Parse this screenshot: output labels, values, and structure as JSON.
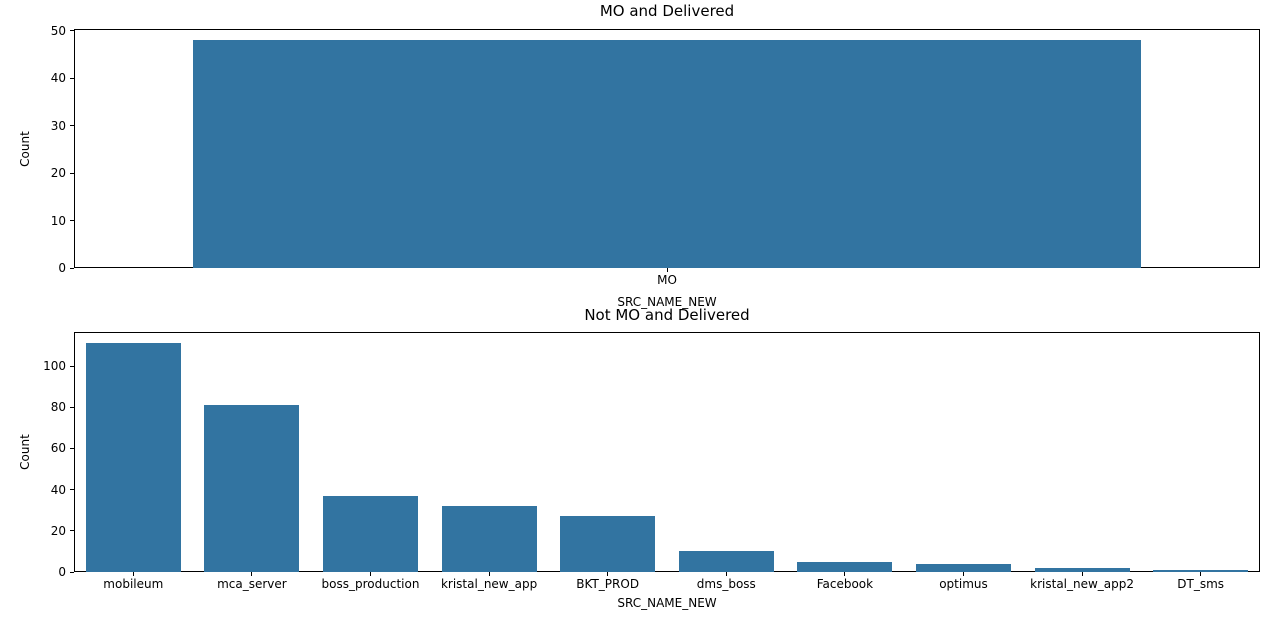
{
  "figure": {
    "background_color": "#ffffff",
    "bar_color": "#3274a1",
    "text_color": "#000000"
  },
  "chart_data": [
    {
      "type": "bar",
      "title": "MO and Delivered",
      "xlabel": "SRC_NAME_NEW",
      "ylabel": "Count",
      "categories": [
        "MO"
      ],
      "values": [
        48
      ],
      "yticks": [
        0,
        10,
        20,
        30,
        40,
        50
      ],
      "ylim": [
        0,
        50.4
      ],
      "grid": false,
      "legend": null
    },
    {
      "type": "bar",
      "title": "Not MO and Delivered",
      "xlabel": "SRC_NAME_NEW",
      "ylabel": "Count",
      "categories": [
        "mobileum",
        "mca_server",
        "boss_production",
        "kristal_new_app",
        "BKT_PROD",
        "dms_boss",
        "Facebook",
        "optimus",
        "kristal_new_app2",
        "DT_sms"
      ],
      "values": [
        111,
        81,
        37,
        32,
        27,
        10,
        5,
        4,
        2,
        1
      ],
      "yticks": [
        0,
        20,
        40,
        60,
        80,
        100
      ],
      "ylim": [
        0,
        116.55
      ],
      "grid": false,
      "legend": null
    }
  ]
}
